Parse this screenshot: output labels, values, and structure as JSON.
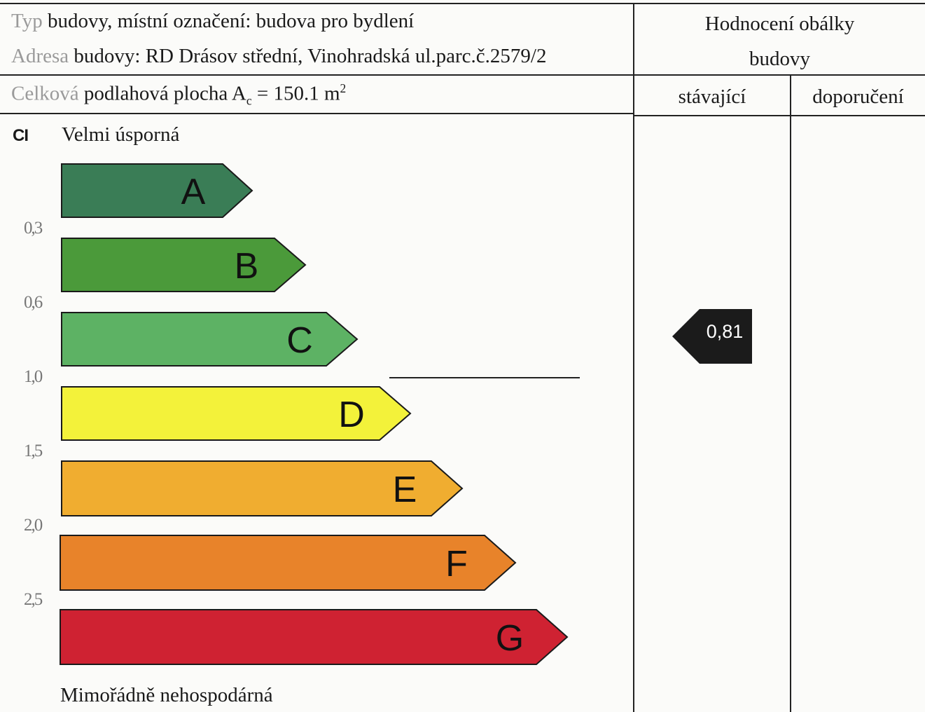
{
  "header": {
    "building_type_prefix": "Typ",
    "building_type_text": " budovy, místní označení: budova pro bydlení",
    "address_prefix": "Adresa",
    "address_text": " budovy: RD Drásov střední, Vinohradská ul.parc.č.2579/2",
    "floor_area_prefix": "Celková",
    "floor_area_label": " podlahová plocha A",
    "floor_area_subscript": "c",
    "floor_area_value": " = 150.1 m",
    "floor_area_superscript": "2"
  },
  "rating_header": {
    "title_line1": "Hodnocení obálky",
    "title_line2": "budovy",
    "col_current": "stávající",
    "col_recommended": "doporučení"
  },
  "scale": {
    "index_label": "CI",
    "top_label": "Velmi úsporná",
    "bottom_label": "Mimořádně nehospodárná",
    "classes": [
      {
        "letter": "A",
        "color": "#3a7d56"
      },
      {
        "letter": "B",
        "color": "#4b9a3a"
      },
      {
        "letter": "C",
        "color": "#5db264"
      },
      {
        "letter": "D",
        "color": "#f3f23a"
      },
      {
        "letter": "E",
        "color": "#f0ad30"
      },
      {
        "letter": "F",
        "color": "#e8832a"
      },
      {
        "letter": "G",
        "color": "#cf2232"
      }
    ],
    "thresholds": [
      "0,3",
      "0,6",
      "1,0",
      "1,5",
      "2,0",
      "2,5"
    ]
  },
  "current_rating": {
    "value": "0,81",
    "marker_color": "#1b1b1b"
  }
}
